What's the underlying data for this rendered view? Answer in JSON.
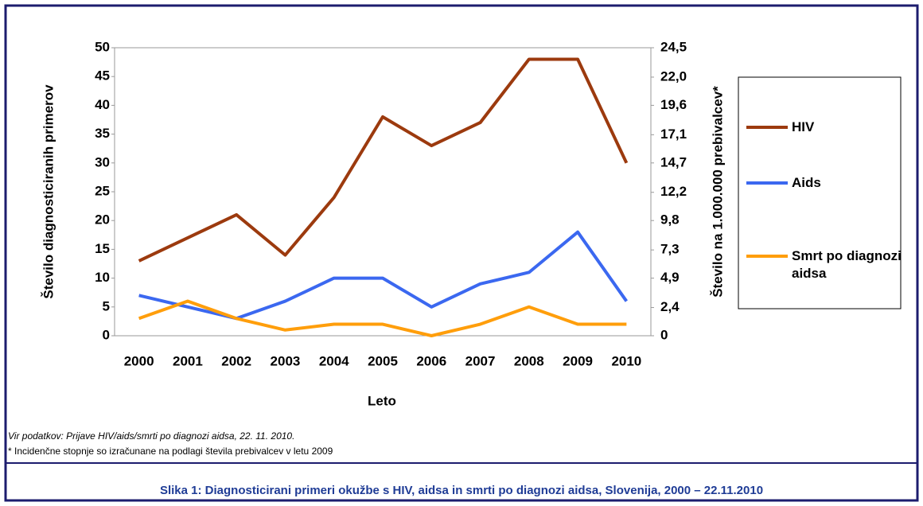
{
  "chart_data": {
    "type": "line",
    "x_label": "Leto",
    "y_label": "Število diagnosticiranih primerov",
    "y2_label": "Število na 1.000.000 prebivalcev*",
    "categories": [
      "2000",
      "2001",
      "2002",
      "2003",
      "2004",
      "2005",
      "2006",
      "2007",
      "2008",
      "2009",
      "2010"
    ],
    "series": [
      {
        "name": "HIV",
        "color": "#9c3a0e",
        "values": [
          13,
          17,
          21,
          14,
          24,
          38,
          33,
          37,
          48,
          48,
          30
        ]
      },
      {
        "name": "Aids",
        "color": "#3b68f0",
        "values": [
          7,
          5,
          3,
          6,
          10,
          10,
          5,
          9,
          11,
          18,
          6
        ]
      },
      {
        "name": "Smrt po diagnozi aidsa",
        "color": "#ff9e0b",
        "values": [
          3,
          6,
          3,
          1,
          2,
          2,
          0,
          2,
          5,
          2,
          2
        ]
      }
    ],
    "ylim": [
      0,
      50
    ],
    "yticks": [
      0,
      5,
      10,
      15,
      20,
      25,
      30,
      35,
      40,
      45,
      50
    ],
    "y2lim": [
      0,
      24.5
    ],
    "y2ticks": [
      0,
      {
        "value": 2.4,
        "label": "2,4"
      },
      {
        "value": 4.9,
        "label": "4,9"
      },
      {
        "value": 7.3,
        "label": "7,3"
      },
      {
        "value": 9.8,
        "label": "9,8"
      },
      {
        "value": 12.2,
        "label": "12,2"
      },
      {
        "value": 14.7,
        "label": "14,7"
      },
      {
        "value": 17.1,
        "label": "17,1"
      },
      {
        "value": 19.6,
        "label": "19,6"
      },
      {
        "value": 22.0,
        "label": "22,0"
      },
      {
        "value": 24.5,
        "label": "24,5"
      }
    ],
    "grid": false,
    "legend": "right"
  },
  "notes": [
    "Vir podatkov: Prijave HIV/aids/smrti po diagnozi aidsa, 22. 11. 2010.",
    "* Incidenčne stopnje so izračunane na podlagi števila prebivalcev v letu 2009"
  ],
  "caption": "Slika 1: Diagnosticirani primeri okužbe s HIV, aidsa in smrti  po diagnozi aidsa, Slovenija, 2000 – 22.11.2010"
}
